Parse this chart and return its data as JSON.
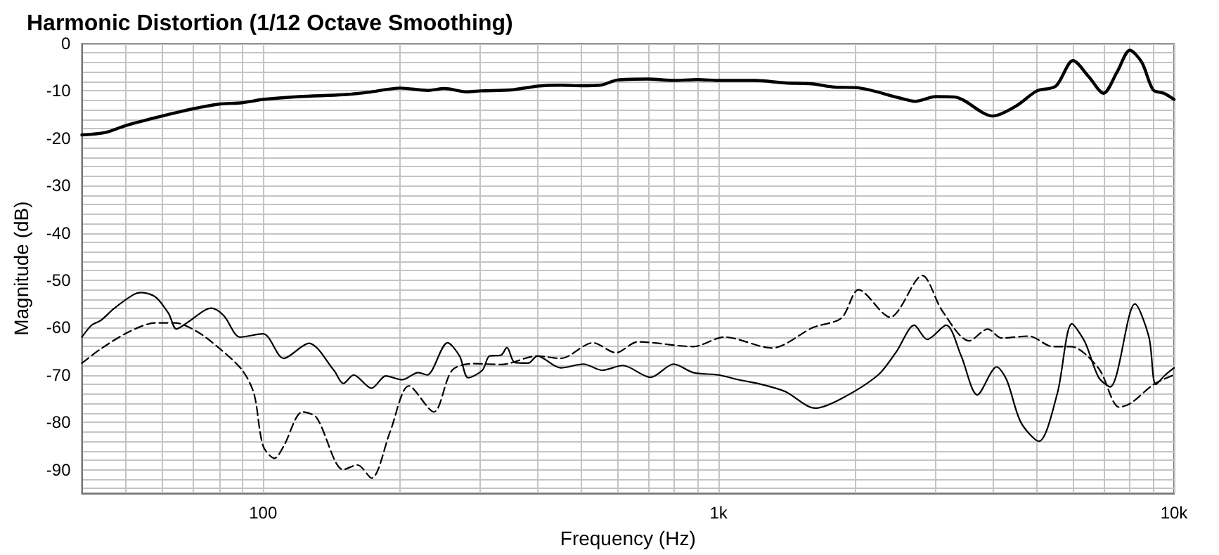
{
  "chart_data": {
    "type": "line",
    "title": "Harmonic Distortion (1/12 Octave Smoothing)",
    "xlabel": "Frequency (Hz)",
    "ylabel": "Magnitude (dB)",
    "log": "x",
    "grid": true,
    "marker": "none",
    "xlim": [
      40,
      10000
    ],
    "ylim": [
      -95,
      0
    ],
    "xticks": [
      {
        "value": 40,
        "label": null
      },
      {
        "value": 50,
        "label": null
      },
      {
        "value": 60,
        "label": null
      },
      {
        "value": 70,
        "label": null
      },
      {
        "value": 80,
        "label": null
      },
      {
        "value": 90,
        "label": null
      },
      {
        "value": 100,
        "label": "100"
      },
      {
        "value": 200,
        "label": null
      },
      {
        "value": 300,
        "label": null
      },
      {
        "value": 400,
        "label": null
      },
      {
        "value": 500,
        "label": null
      },
      {
        "value": 600,
        "label": null
      },
      {
        "value": 700,
        "label": null
      },
      {
        "value": 800,
        "label": null
      },
      {
        "value": 900,
        "label": null
      },
      {
        "value": 1000,
        "label": "1k"
      },
      {
        "value": 2000,
        "label": null
      },
      {
        "value": 3000,
        "label": null
      },
      {
        "value": 4000,
        "label": null
      },
      {
        "value": 5000,
        "label": null
      },
      {
        "value": 6000,
        "label": null
      },
      {
        "value": 7000,
        "label": null
      },
      {
        "value": 8000,
        "label": null
      },
      {
        "value": 9000,
        "label": null
      },
      {
        "value": 10000,
        "label": "10k"
      }
    ],
    "yticks": [
      0,
      {
        "value": -2,
        "label": null
      },
      {
        "value": -4,
        "label": null
      },
      {
        "value": -6,
        "label": null
      },
      {
        "value": -8,
        "label": null
      },
      -10,
      {
        "value": -12,
        "label": null
      },
      {
        "value": -14,
        "label": null
      },
      {
        "value": -16,
        "label": null
      },
      {
        "value": -18,
        "label": null
      },
      -20,
      {
        "value": -22,
        "label": null
      },
      {
        "value": -24,
        "label": null
      },
      {
        "value": -26,
        "label": null
      },
      {
        "value": -28,
        "label": null
      },
      -30,
      {
        "value": -32,
        "label": null
      },
      {
        "value": -34,
        "label": null
      },
      {
        "value": -36,
        "label": null
      },
      {
        "value": -38,
        "label": null
      },
      -40,
      {
        "value": -42,
        "label": null
      },
      {
        "value": -44,
        "label": null
      },
      {
        "value": -46,
        "label": null
      },
      {
        "value": -48,
        "label": null
      },
      -50,
      {
        "value": -52,
        "label": null
      },
      {
        "value": -54,
        "label": null
      },
      {
        "value": -56,
        "label": null
      },
      {
        "value": -58,
        "label": null
      },
      -60,
      {
        "value": -62,
        "label": null
      },
      {
        "value": -64,
        "label": null
      },
      {
        "value": -66,
        "label": null
      },
      {
        "value": -68,
        "label": null
      },
      -70,
      {
        "value": -72,
        "label": null
      },
      {
        "value": -74,
        "label": null
      },
      {
        "value": -76,
        "label": null
      },
      {
        "value": -78,
        "label": null
      },
      -80,
      {
        "value": -82,
        "label": null
      },
      {
        "value": -84,
        "label": null
      },
      {
        "value": -86,
        "label": null
      },
      {
        "value": -88,
        "label": null
      },
      -90,
      {
        "value": -92,
        "label": null
      },
      {
        "value": -94,
        "label": null
      }
    ],
    "series": [
      {
        "color": "#000000",
        "line_style": "solid",
        "x": [
          40,
          45,
          50,
          60,
          70,
          80,
          90,
          100,
          120,
          150,
          170,
          200,
          230,
          250,
          280,
          300,
          350,
          400,
          450,
          500,
          550,
          600,
          700,
          800,
          900,
          1000,
          1200,
          1400,
          1600,
          1800,
          2000,
          2500,
          2700,
          3000,
          3300,
          4000,
          4500,
          5000,
          5500,
          6000,
          6500,
          7000,
          7500,
          8000,
          8500,
          9000,
          9500,
          10000
        ],
        "values": [
          -19.3,
          -18.8,
          -17.3,
          -15.3,
          -13.8,
          -12.8,
          -12.5,
          -11.8,
          -11.2,
          -10.8,
          -10.3,
          -9.4,
          -9.9,
          -9.5,
          -10.2,
          -10,
          -9.8,
          -9,
          -8.8,
          -8.9,
          -8.8,
          -7.7,
          -7.5,
          -7.8,
          -7.6,
          -7.8,
          -7.8,
          -8.3,
          -8.5,
          -9.2,
          -9.3,
          -11.5,
          -12.2,
          -11.2,
          -11.3,
          -15.3,
          -13.2,
          -10,
          -9,
          -3.6,
          -7,
          -10.5,
          -6,
          -1.4,
          -4,
          -9.8,
          -10.5,
          -11.8
        ]
      },
      {
        "color": "#000000",
        "line_style": "solid",
        "x": [
          40,
          42,
          44,
          47,
          52,
          54,
          58,
          62,
          64.5,
          68,
          77,
          82,
          89,
          100,
          111,
          126,
          143,
          150,
          158,
          173,
          186,
          202,
          219,
          229,
          254,
          270,
          282,
          303,
          314,
          333,
          343,
          357,
          382,
          400,
          450,
          505,
          555,
          616,
          709,
          797,
          880,
          1000,
          1105,
          1244,
          1400,
          1630,
          1860,
          2240,
          2460,
          2690,
          2870,
          3160,
          3410,
          3700,
          4080,
          4290,
          4610,
          5050,
          5540,
          5970,
          6370,
          6830,
          7240,
          8210,
          8810,
          9120,
          9570,
          10000
        ],
        "values": [
          -62,
          -59.5,
          -58.5,
          -56,
          -53,
          -52.6,
          -53.5,
          -57,
          -60.3,
          -59,
          -55.9,
          -57.5,
          -62,
          -61.3,
          -66.5,
          -63.3,
          -69,
          -71.8,
          -70,
          -72.8,
          -70.2,
          -71,
          -69.5,
          -70,
          -63.2,
          -66,
          -70.6,
          -69,
          -66,
          -65.8,
          -64.2,
          -67.4,
          -67.5,
          -66,
          -68.5,
          -67.7,
          -69,
          -68,
          -70.5,
          -67.7,
          -69.5,
          -70,
          -71,
          -72,
          -73.5,
          -77,
          -75,
          -70,
          -65,
          -59.5,
          -62.5,
          -59.5,
          -66,
          -74.2,
          -68.3,
          -71,
          -80,
          -84,
          -74,
          -59.2,
          -63,
          -70.5,
          -72.5,
          -55,
          -62,
          -72,
          -70,
          -68.5
        ]
      },
      {
        "color": "#000000",
        "line_style": "dashed",
        "x": [
          40,
          44,
          50.5,
          58,
          64,
          71.5,
          80,
          90,
          95.5,
          100,
          106,
          111,
          122,
          131,
          150,
          161,
          173,
          190,
          209,
          237,
          260,
          290,
          333,
          400,
          450,
          530,
          595,
          665,
          880,
          1030,
          1310,
          1610,
          1860,
          2030,
          2380,
          2800,
          3100,
          3550,
          3900,
          4180,
          4800,
          5420,
          5940,
          6830,
          7580,
          8030,
          9020,
          10000
        ],
        "values": [
          -67.5,
          -64.5,
          -61,
          -59,
          -59,
          -60.8,
          -64.3,
          -69,
          -74,
          -85,
          -87.6,
          -85,
          -77.8,
          -79,
          -90,
          -89,
          -91.8,
          -82,
          -72.3,
          -77.8,
          -69,
          -67.6,
          -67.8,
          -66,
          -66.5,
          -63.2,
          -65.3,
          -63,
          -64,
          -62,
          -64.3,
          -60,
          -58,
          -52,
          -57.8,
          -49,
          -56.5,
          -62.8,
          -60.3,
          -62.2,
          -61.8,
          -64,
          -64,
          -68.6,
          -76.8,
          -76,
          -72,
          -70
        ]
      }
    ]
  }
}
